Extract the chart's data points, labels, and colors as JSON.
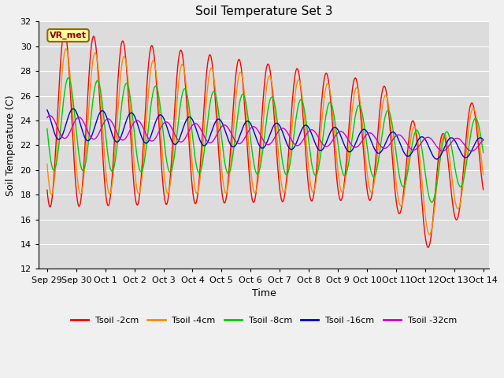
{
  "title": "Soil Temperature Set 3",
  "xlabel": "Time",
  "ylabel": "Soil Temperature (C)",
  "ylim": [
    12,
    32
  ],
  "yticks": [
    12,
    14,
    16,
    18,
    20,
    22,
    24,
    26,
    28,
    30,
    32
  ],
  "plot_bg": "#dcdcdc",
  "fig_bg": "#f0f0f0",
  "grid_color": "#ffffff",
  "annotation_text": "VR_met",
  "annotation_bg": "#ffff99",
  "annotation_border": "#8B6914",
  "series": [
    {
      "label": "Tsoil -2cm",
      "color": "#ff0000"
    },
    {
      "label": "Tsoil -4cm",
      "color": "#ff8c00"
    },
    {
      "label": "Tsoil -8cm",
      "color": "#00cc00"
    },
    {
      "label": "Tsoil -16cm",
      "color": "#0000cd"
    },
    {
      "label": "Tsoil -32cm",
      "color": "#cc00cc"
    }
  ],
  "x_tick_labels": [
    "Sep 29",
    "Sep 30",
    "Oct 1",
    "Oct 2",
    "Oct 3",
    "Oct 4",
    "Oct 5",
    "Oct 6",
    "Oct 7",
    "Oct 8",
    "Oct 9",
    "Oct 10",
    "Oct 11",
    "Oct 12",
    "Oct 13",
    "Oct 14"
  ],
  "n_points": 2000
}
